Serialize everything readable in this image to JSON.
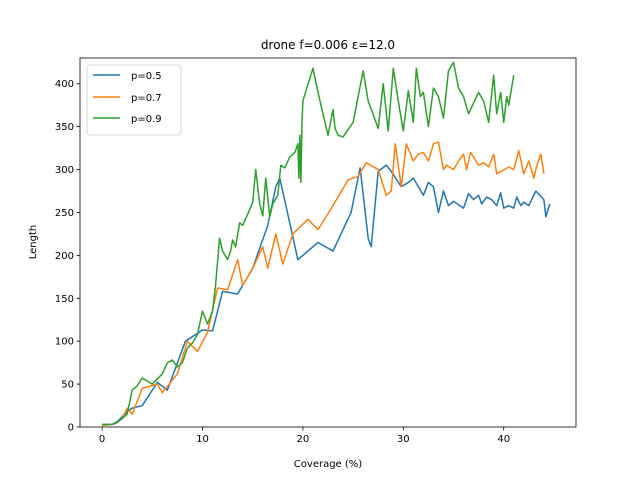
{
  "chart_data": {
    "type": "line",
    "title": "drone f=0.006 ε=12.0",
    "xlabel": "Coverage (%)",
    "ylabel": "Length",
    "xlim": [
      -2.2,
      47.2
    ],
    "ylim": [
      0,
      430
    ],
    "xticks": [
      0,
      10,
      20,
      30,
      40
    ],
    "yticks": [
      0,
      50,
      100,
      150,
      200,
      250,
      300,
      350,
      400
    ],
    "grid": false,
    "legend_position": "top-left",
    "series": [
      {
        "name": "p=0.5",
        "color": "#1f77b4",
        "x": [
          0,
          1,
          1.5,
          2,
          2.5,
          3,
          4,
          5.5,
          6.5,
          8.3,
          10,
          11,
          12,
          13.5,
          15,
          16.5,
          17.3,
          17.7,
          19.5,
          21.5,
          23,
          24.8,
          25.7,
          26.5,
          26.8,
          27.5,
          28.3,
          28.8,
          29.8,
          30.5,
          31,
          32,
          32.5,
          33,
          33.5,
          34,
          34.5,
          35,
          36,
          36.5,
          37,
          37.5,
          37.8,
          38.3,
          38.8,
          39.3,
          39.7,
          40,
          40.5,
          41,
          41.3,
          41.7,
          42,
          42.5,
          43.2,
          44,
          44.2,
          44.6
        ],
        "values": [
          2,
          3,
          6,
          12,
          18,
          22,
          25,
          52,
          43,
          100,
          113,
          112,
          158,
          155,
          185,
          235,
          280,
          290,
          195,
          215,
          205,
          250,
          302,
          220,
          210,
          298,
          305,
          298,
          280,
          285,
          290,
          270,
          285,
          280,
          250,
          275,
          258,
          263,
          255,
          272,
          265,
          270,
          260,
          268,
          265,
          258,
          273,
          255,
          258,
          255,
          268,
          258,
          262,
          258,
          275,
          265,
          245,
          260
        ]
      },
      {
        "name": "p=0.7",
        "color": "#ff7f0e",
        "x": [
          0,
          1,
          1.5,
          2,
          2.5,
          3,
          4,
          5.5,
          6,
          7.5,
          8.5,
          9.5,
          10.5,
          11.5,
          12.5,
          13.5,
          14,
          15,
          16,
          16.5,
          17.3,
          18,
          19,
          20.5,
          21.5,
          23,
          24.5,
          25.5,
          26.3,
          27.5,
          28.3,
          28.8,
          29.2,
          29.8,
          30.3,
          31,
          31.5,
          32,
          32.5,
          33,
          33.5,
          34,
          34.3,
          35,
          35.5,
          36,
          36.3,
          36.7,
          37.5,
          38,
          38.5,
          39,
          39.3,
          40.5,
          41,
          41.5,
          42,
          42.5,
          43,
          43.3,
          43.7,
          44
        ],
        "values": [
          2,
          3,
          5,
          10,
          22,
          15,
          45,
          50,
          40,
          62,
          100,
          88,
          110,
          162,
          160,
          195,
          165,
          185,
          210,
          185,
          225,
          190,
          225,
          242,
          230,
          258,
          288,
          292,
          308,
          300,
          270,
          275,
          330,
          280,
          330,
          310,
          318,
          320,
          310,
          330,
          332,
          300,
          305,
          300,
          310,
          318,
          300,
          320,
          305,
          308,
          303,
          318,
          295,
          303,
          300,
          322,
          295,
          310,
          290,
          305,
          318,
          295
        ]
      },
      {
        "name": "p=0.9",
        "color": "#2ca02c",
        "x": [
          0,
          1,
          1.5,
          2,
          2.5,
          3,
          3.5,
          4,
          5,
          6,
          6.5,
          7,
          7.5,
          8,
          8.5,
          9,
          9.5,
          10,
          10.5,
          11,
          11.3,
          11.7,
          12,
          12.5,
          12.8,
          13,
          13.3,
          13.7,
          14,
          14.5,
          15,
          15.3,
          15.7,
          16,
          16.3,
          16.7,
          17,
          17.5,
          17.8,
          18.2,
          18.7,
          19.2,
          19.5,
          19.6,
          19.7,
          19.8,
          19.9,
          20,
          21,
          21.5,
          22.5,
          23,
          23.2,
          23.5,
          24,
          25,
          26,
          26.5,
          27.5,
          28,
          28.5,
          29,
          29.5,
          30,
          30.5,
          31,
          31.3,
          31.7,
          32,
          32.5,
          33,
          33.5,
          34,
          34.5,
          35,
          35.5,
          36,
          36.5,
          37.5,
          38,
          38.5,
          39,
          39.3,
          39.7,
          40,
          40.3,
          40.5,
          41
        ],
        "values": [
          3,
          3,
          5,
          10,
          15,
          43,
          48,
          57,
          50,
          62,
          75,
          78,
          70,
          75,
          92,
          98,
          108,
          135,
          120,
          135,
          165,
          220,
          205,
          195,
          205,
          218,
          210,
          238,
          235,
          248,
          262,
          300,
          260,
          246,
          290,
          245,
          260,
          270,
          305,
          302,
          315,
          320,
          330,
          290,
          340,
          285,
          350,
          380,
          418,
          390,
          340,
          370,
          348,
          340,
          338,
          355,
          415,
          380,
          348,
          400,
          345,
          418,
          380,
          345,
          392,
          355,
          418,
          385,
          390,
          350,
          395,
          385,
          360,
          415,
          425,
          395,
          385,
          365,
          390,
          380,
          355,
          410,
          365,
          390,
          355,
          385,
          375,
          410
        ]
      }
    ]
  }
}
